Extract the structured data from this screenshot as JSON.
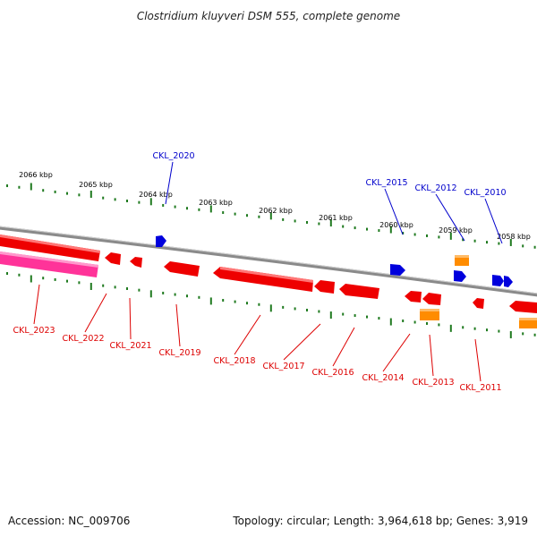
{
  "title": "Clostridium kluyveri DSM 555, complete genome",
  "footer": {
    "accession": "Accession: NC_009706",
    "summary": "Topology: circular; Length: 3,964,618 bp; Genes: 3,919"
  },
  "colors": {
    "backbone": "#8a8a8a",
    "tick": "#1f7a1f",
    "forward_gene": "#0000dd",
    "reverse_gene": "#ee0000",
    "rna_gene": "#ff8c00",
    "highlight_gene": "#ff3399",
    "forward_label": "#0000cc",
    "reverse_label": "#dd0000"
  },
  "coordinate_labels": [
    "2066 kbp",
    "2065 kbp",
    "2064 kbp",
    "2063 kbp",
    "2062 kbp",
    "2061 kbp",
    "2060 kbp",
    "2059 kbp",
    "2058 kbp"
  ],
  "forward_gene_labels": [
    "CKL_2020",
    "CKL_2015",
    "CKL_2012",
    "CKL_2010"
  ],
  "reverse_gene_labels": [
    "CKL_2023",
    "CKL_2022",
    "CKL_2021",
    "CKL_2019",
    "CKL_2018",
    "CKL_2017",
    "CKL_2016",
    "CKL_2014",
    "CKL_2013",
    "CKL_2011"
  ]
}
